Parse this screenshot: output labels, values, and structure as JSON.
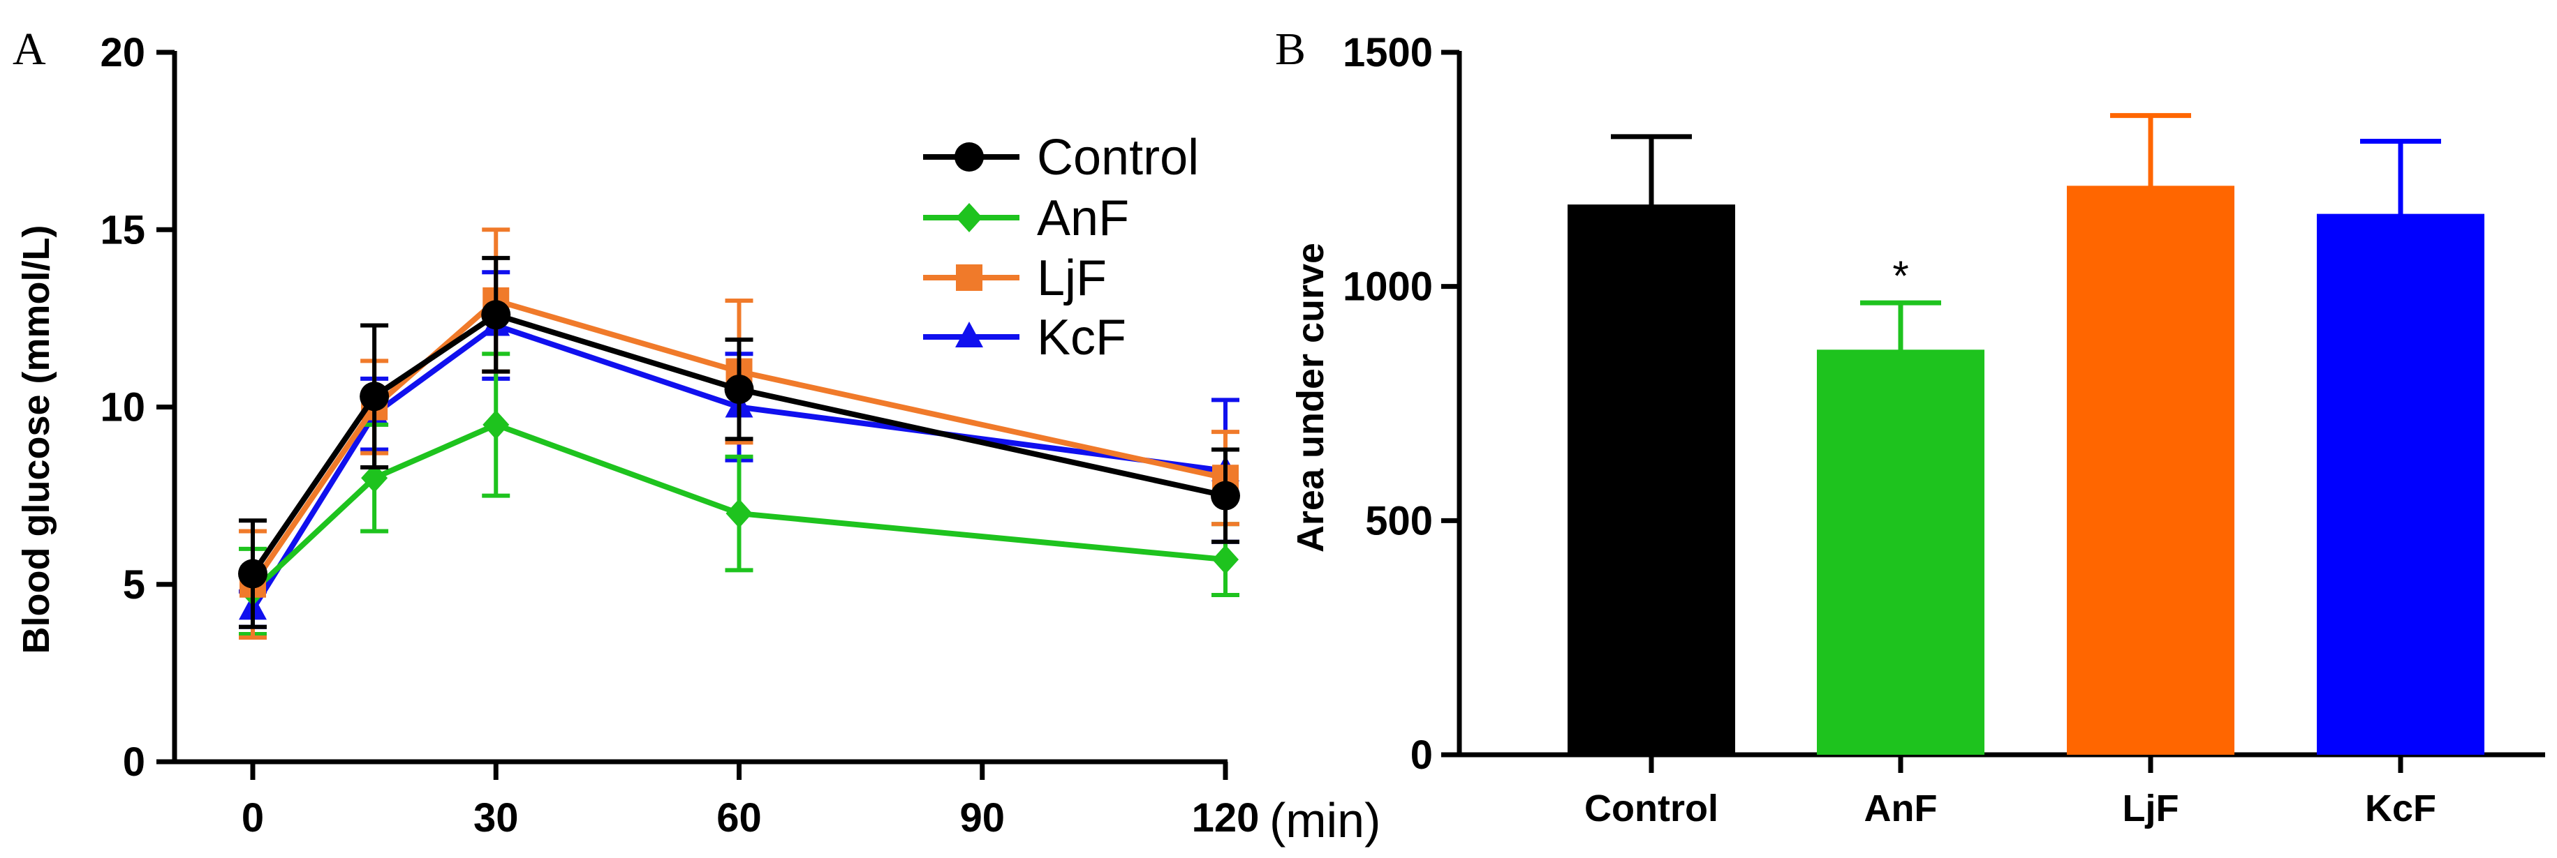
{
  "colors": {
    "Control": "#000000",
    "AnF": "#1ec31e",
    "LjF": "#ff6600",
    "KcF": "#0000ff",
    "LjF_line": "#f07a2a",
    "KcF_line": "#1010ee"
  },
  "chart_data": [
    {
      "panel_label": "A",
      "type": "line",
      "title": "",
      "xlabel": "",
      "x_unit": "(min)",
      "ylabel": "Blood glucose (mmol/L)",
      "xlim": [
        0,
        120
      ],
      "ylim": [
        0,
        20
      ],
      "x_ticks": [
        "0",
        "30",
        "60",
        "90",
        "120"
      ],
      "y_ticks": [
        "0",
        "5",
        "10",
        "15",
        "20"
      ],
      "x": [
        0,
        15,
        30,
        60,
        120
      ],
      "legend_position": "top-right",
      "series": [
        {
          "name": "Control",
          "marker": "circle",
          "values": [
            5.3,
            10.3,
            12.6,
            10.5,
            7.5
          ],
          "errors": [
            1.5,
            2.0,
            1.6,
            1.4,
            1.3
          ]
        },
        {
          "name": "AnF",
          "marker": "diamond",
          "values": [
            4.8,
            8.0,
            9.5,
            7.0,
            5.7
          ],
          "errors": [
            1.2,
            1.5,
            2.0,
            1.6,
            1.0
          ]
        },
        {
          "name": "LjF",
          "marker": "square",
          "values": [
            5.0,
            10.0,
            13.0,
            11.0,
            8.0
          ],
          "errors": [
            1.5,
            1.3,
            2.0,
            2.0,
            1.3
          ]
        },
        {
          "name": "KcF",
          "marker": "triangle",
          "values": [
            4.3,
            9.8,
            12.3,
            10.0,
            8.2
          ],
          "errors": [
            0.5,
            1.0,
            1.5,
            1.5,
            2.0
          ]
        }
      ],
      "grid": false
    },
    {
      "panel_label": "B",
      "type": "bar",
      "title": "",
      "xlabel": "",
      "ylabel": "Area under curve",
      "ylim": [
        0,
        1500
      ],
      "y_ticks": [
        "0",
        "500",
        "1000",
        "1500"
      ],
      "categories": [
        "Control",
        "AnF",
        "LjF",
        "KcF"
      ],
      "values": [
        1175,
        865,
        1215,
        1155
      ],
      "errors": [
        145,
        100,
        150,
        155
      ],
      "annotations": [
        {
          "category": "AnF",
          "text": "*"
        }
      ],
      "grid": false
    }
  ]
}
